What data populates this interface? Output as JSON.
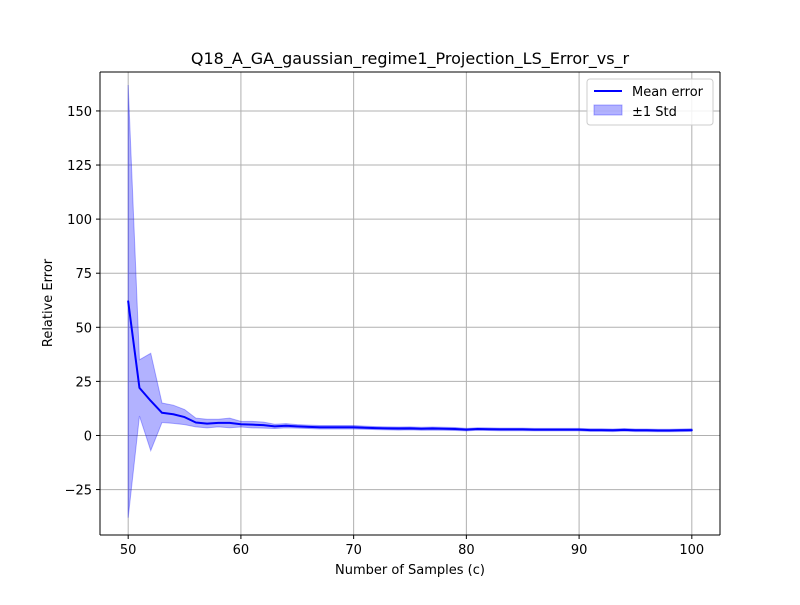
{
  "chart_data": {
    "type": "line",
    "title": "Q18_A_GA_gaussian_regime1_Projection_LS_Error_vs_r",
    "xlabel": "Number of Samples (c)",
    "ylabel": "Relative Error",
    "xlim": [
      47.5,
      102.5
    ],
    "ylim": [
      -46,
      168
    ],
    "xticks": [
      50,
      60,
      70,
      80,
      90,
      100
    ],
    "yticks": [
      -25,
      0,
      25,
      50,
      75,
      100,
      125,
      150
    ],
    "xtick_labels": [
      "50",
      "60",
      "70",
      "80",
      "90",
      "100"
    ],
    "ytick_labels": [
      "−25",
      "0",
      "25",
      "50",
      "75",
      "100",
      "125",
      "150"
    ],
    "grid": true,
    "legend_position": "top-right",
    "colors": {
      "line": "#0000ff",
      "band": "#0000ff",
      "grid": "#b0b0b0"
    },
    "x": [
      50,
      51,
      52,
      53,
      54,
      55,
      56,
      57,
      58,
      59,
      60,
      61,
      62,
      63,
      64,
      65,
      66,
      67,
      68,
      69,
      70,
      71,
      72,
      73,
      74,
      75,
      76,
      77,
      78,
      79,
      80,
      81,
      82,
      83,
      84,
      85,
      86,
      87,
      88,
      89,
      90,
      91,
      92,
      93,
      94,
      95,
      96,
      97,
      98,
      99,
      100
    ],
    "series": [
      {
        "name": "Mean error",
        "values": [
          62,
          22,
          16,
          10.5,
          9.8,
          8.5,
          6,
          5.5,
          5.8,
          5.8,
          5.2,
          5,
          4.8,
          4.2,
          4.5,
          4.2,
          4,
          3.8,
          3.8,
          3.8,
          3.8,
          3.6,
          3.4,
          3.3,
          3.2,
          3.3,
          3.1,
          3.2,
          3.1,
          3.0,
          2.7,
          3.0,
          2.9,
          2.8,
          2.8,
          2.8,
          2.7,
          2.7,
          2.7,
          2.7,
          2.7,
          2.5,
          2.5,
          2.4,
          2.6,
          2.4,
          2.4,
          2.3,
          2.3,
          2.4,
          2.5
        ]
      },
      {
        "name": "±1 Std",
        "type": "band",
        "upper": [
          162,
          35,
          38,
          15,
          14,
          12,
          8,
          7.5,
          7.5,
          8,
          6.5,
          6.5,
          6.2,
          5.2,
          5.5,
          5,
          4.8,
          4.6,
          4.6,
          4.6,
          4.6,
          4.3,
          4.1,
          4,
          3.9,
          4,
          3.8,
          3.9,
          3.8,
          3.7,
          3.3,
          3.6,
          3.5,
          3.4,
          3.4,
          3.4,
          3.3,
          3.3,
          3.3,
          3.3,
          3.3,
          3.1,
          3.1,
          3,
          3.2,
          3,
          3,
          2.9,
          2.9,
          3,
          3.1
        ],
        "lower": [
          -38,
          9,
          -7,
          6,
          5.6,
          5,
          4,
          3.5,
          4,
          3.6,
          3.9,
          3.5,
          3.4,
          3.2,
          3.5,
          3.4,
          3.2,
          3,
          3,
          3,
          3,
          2.9,
          2.7,
          2.6,
          2.5,
          2.6,
          2.4,
          2.5,
          2.4,
          2.3,
          2.1,
          2.4,
          2.3,
          2.2,
          2.2,
          2.2,
          2.1,
          2.1,
          2.1,
          2.1,
          2.1,
          1.9,
          1.9,
          1.8,
          2,
          1.8,
          1.8,
          1.7,
          1.7,
          1.8,
          1.9
        ]
      }
    ]
  }
}
